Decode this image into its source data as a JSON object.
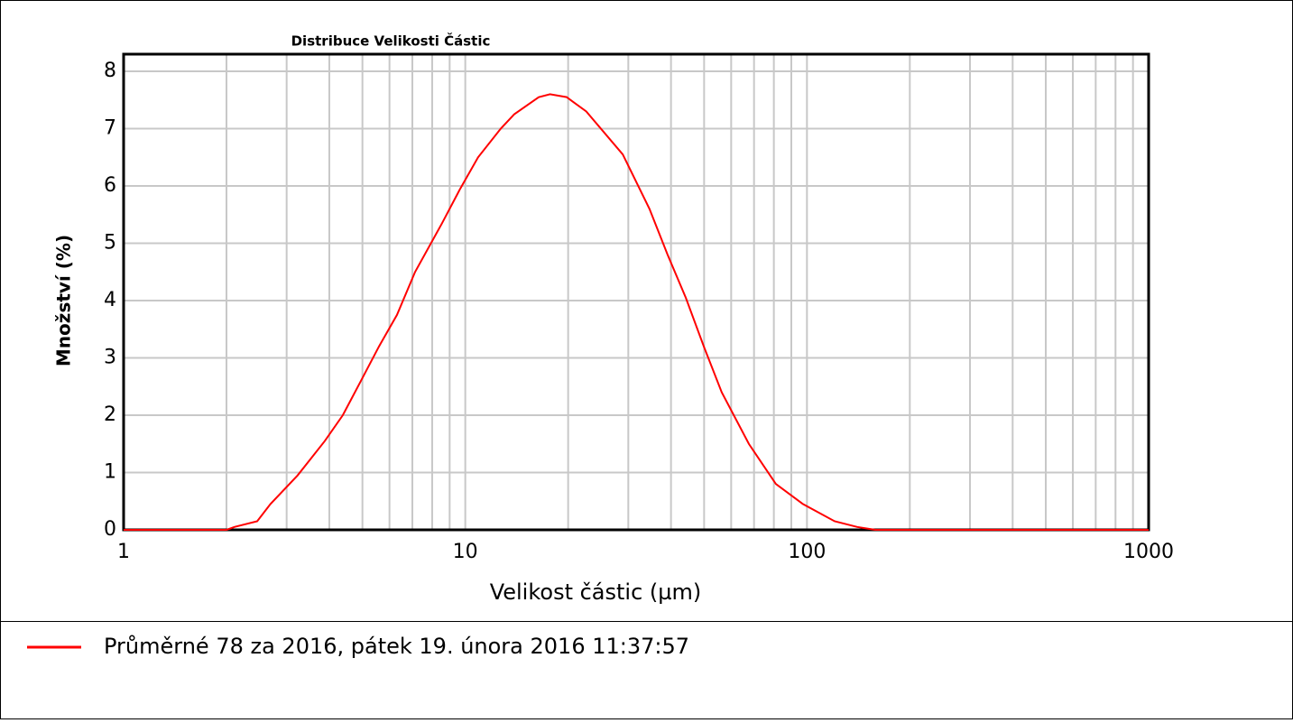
{
  "chart_data": {
    "type": "line",
    "title": "Distribuce Velikosti Částic",
    "x_label": "Velikost částic (µm)",
    "y_label": "Množství (%)",
    "x_log": true,
    "grid": true,
    "xlim": [
      1,
      1000
    ],
    "xticks": [
      1,
      10,
      100,
      1000
    ],
    "ylim": [
      0,
      8.3
    ],
    "yticks": [
      0,
      1,
      2,
      3,
      4,
      5,
      6,
      7,
      8
    ],
    "legend": "bottom",
    "series": [
      {
        "name": "Průměrné 78 za 2016, pátek 19. února 2016 11:37:57",
        "color": "#ff0000",
        "x": [
          1,
          2,
          2.11,
          2.46,
          2.69,
          3.23,
          3.88,
          4.38,
          4.95,
          5.59,
          6.31,
          7.13,
          8.55,
          9.66,
          10.9,
          12.7,
          13.9,
          16.4,
          17.7,
          19.8,
          22.6,
          28.9,
          34.6,
          39.1,
          44.2,
          49.9,
          56.3,
          67.6,
          81.1,
          97.3,
          120.5,
          140.3,
          158.5,
          1000
        ],
        "values": [
          0,
          0,
          0.05,
          0.15,
          0.45,
          0.95,
          1.55,
          2.0,
          2.6,
          3.2,
          3.75,
          4.5,
          5.35,
          5.95,
          6.5,
          7.0,
          7.25,
          7.55,
          7.6,
          7.55,
          7.3,
          6.55,
          5.6,
          4.8,
          4.05,
          3.2,
          2.4,
          1.5,
          0.8,
          0.45,
          0.15,
          0.05,
          0,
          0
        ]
      }
    ]
  }
}
